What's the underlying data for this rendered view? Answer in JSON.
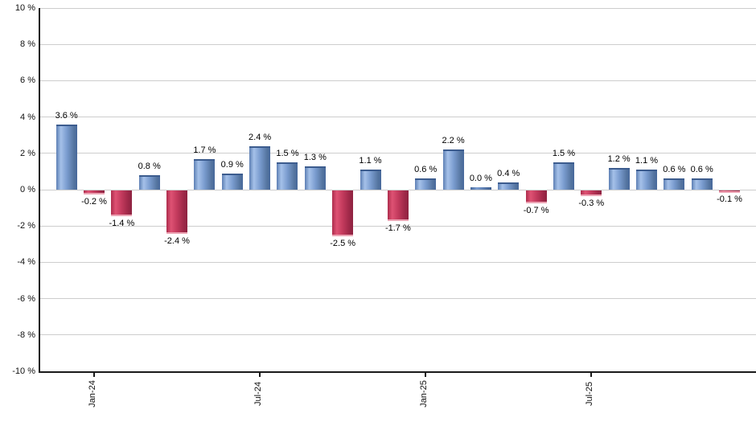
{
  "chart_data": {
    "type": "bar",
    "title": "",
    "xlabel": "",
    "ylabel": "",
    "grid": true,
    "legend_position": "none",
    "ylim": [
      -10,
      10
    ],
    "y_tick_step": 2,
    "y_tick_labels": [
      "10 %",
      "8 %",
      "6 %",
      "4 %",
      "2 %",
      "0 %",
      "-2 %",
      "-4 %",
      "-6 %",
      "-8 %",
      "-10 %"
    ],
    "values": [
      3.6,
      -0.2,
      -1.4,
      0.8,
      -2.4,
      1.7,
      0.9,
      2.4,
      1.5,
      1.3,
      -2.5,
      1.1,
      -1.7,
      0.6,
      2.2,
      0.0,
      0.4,
      -0.7,
      1.5,
      -0.3,
      1.2,
      1.1,
      0.6,
      0.6,
      -0.1
    ],
    "bar_labels": [
      "3.6 %",
      "-0.2 %",
      "-1.4 %",
      "0.8 %",
      "-2.4 %",
      "1.7 %",
      "0.9 %",
      "2.4 %",
      "1.5 %",
      "1.3 %",
      "-2.5 %",
      "1.1 %",
      "-1.7 %",
      "0.6 %",
      "2.2 %",
      "0.0 %",
      "0.4 %",
      "-0.7 %",
      "1.5 %",
      "-0.3 %",
      "1.2 %",
      "1.1 %",
      "0.6 %",
      "0.6 %",
      "-0.1 %"
    ],
    "x_ticks": [
      {
        "index": 1,
        "label": "Jan-24"
      },
      {
        "index": 7,
        "label": "Jul-24"
      },
      {
        "index": 13,
        "label": "Jan-25"
      },
      {
        "index": 19,
        "label": "Jul-25"
      }
    ],
    "colors": {
      "positive_bar": "#7b9dd0",
      "negative_bar": "#c33a5d",
      "gridline": "#cdcdcd",
      "axis": "#1a1a1a",
      "label_text": "#000000"
    }
  }
}
